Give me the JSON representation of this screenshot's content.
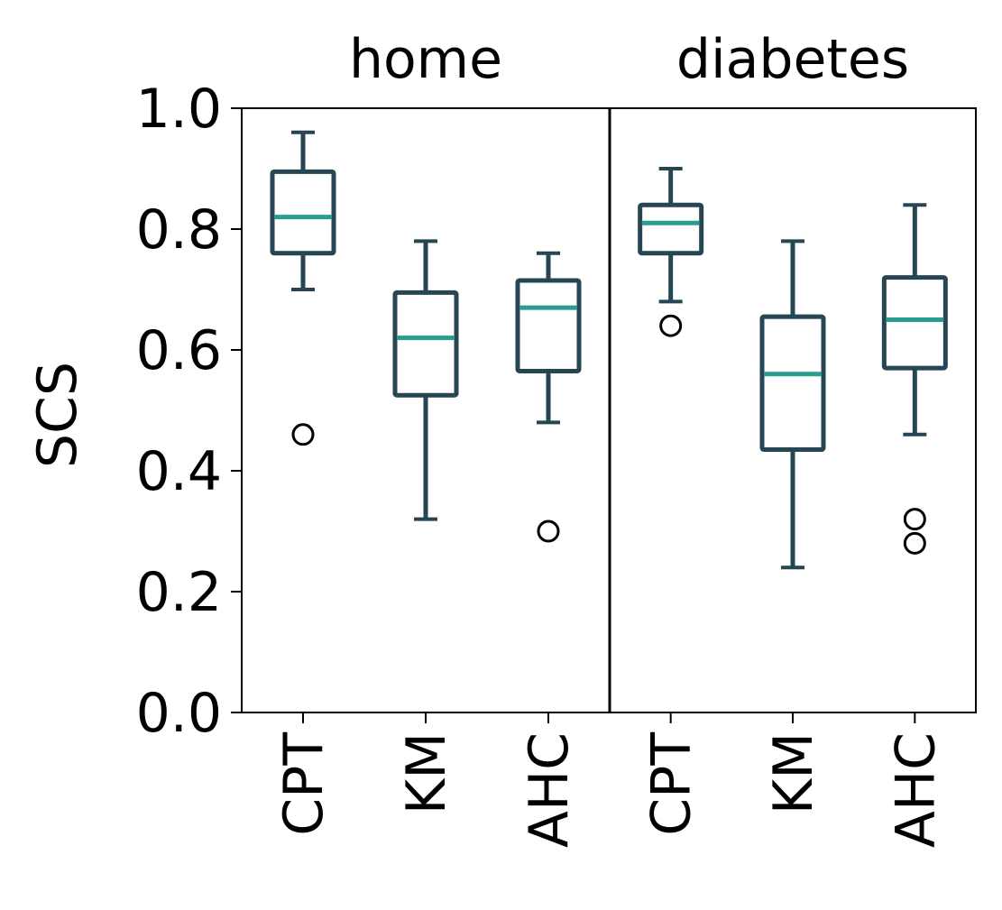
{
  "colors": {
    "box": "#264653",
    "median": "#2a9d8f",
    "axis": "#000000",
    "background": "#ffffff"
  },
  "chart_data": {
    "type": "box",
    "ylabel": "SCS",
    "ylim": [
      0.0,
      1.0
    ],
    "yticks": [
      "0.0",
      "0.2",
      "0.4",
      "0.6",
      "0.8",
      "1.0"
    ],
    "categories": [
      "CPT",
      "KM",
      "AHC"
    ],
    "panels": [
      {
        "title": "home",
        "boxes": [
          {
            "category": "CPT",
            "whisker_low": 0.7,
            "q1": 0.76,
            "median": 0.82,
            "q3": 0.895,
            "whisker_high": 0.96,
            "outliers": [
              0.46
            ]
          },
          {
            "category": "KM",
            "whisker_low": 0.32,
            "q1": 0.525,
            "median": 0.62,
            "q3": 0.695,
            "whisker_high": 0.78,
            "outliers": []
          },
          {
            "category": "AHC",
            "whisker_low": 0.48,
            "q1": 0.565,
            "median": 0.67,
            "q3": 0.715,
            "whisker_high": 0.76,
            "outliers": [
              0.3
            ]
          }
        ]
      },
      {
        "title": "diabetes",
        "boxes": [
          {
            "category": "CPT",
            "whisker_low": 0.68,
            "q1": 0.76,
            "median": 0.81,
            "q3": 0.84,
            "whisker_high": 0.9,
            "outliers": [
              0.64
            ]
          },
          {
            "category": "KM",
            "whisker_low": 0.24,
            "q1": 0.435,
            "median": 0.56,
            "q3": 0.655,
            "whisker_high": 0.78,
            "outliers": []
          },
          {
            "category": "AHC",
            "whisker_low": 0.46,
            "q1": 0.57,
            "median": 0.65,
            "q3": 0.72,
            "whisker_high": 0.84,
            "outliers": [
              0.28,
              0.32
            ]
          }
        ]
      }
    ]
  }
}
